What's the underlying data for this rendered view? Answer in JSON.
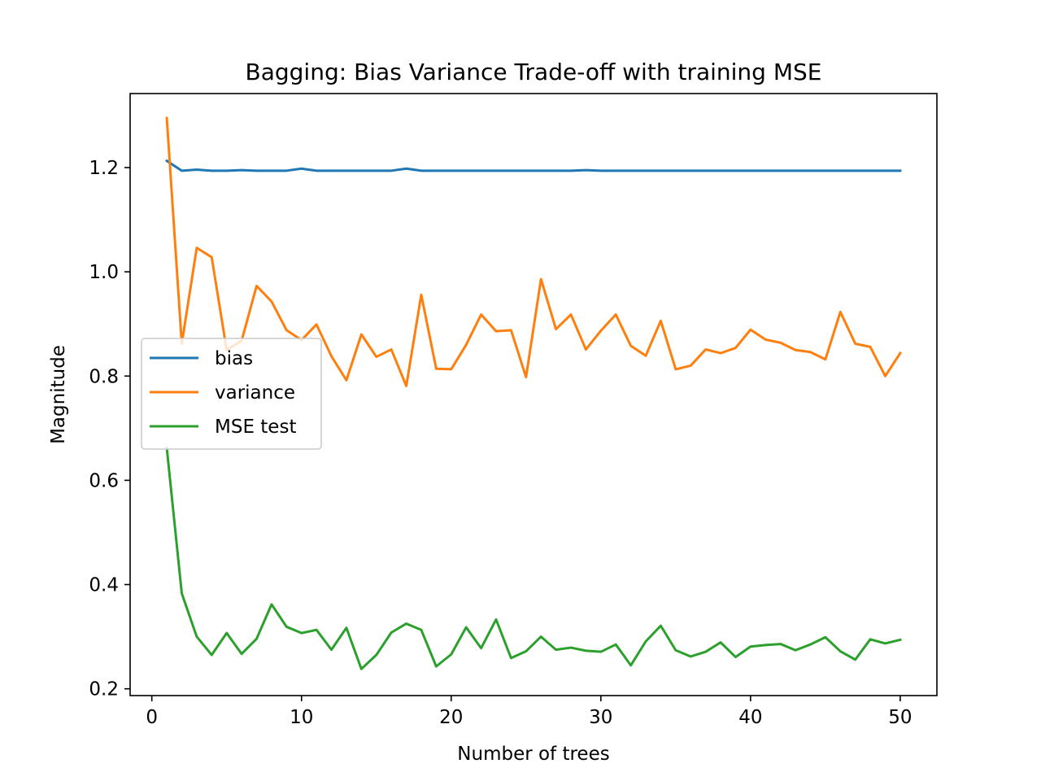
{
  "chart_data": {
    "type": "line",
    "title": "Bagging: Bias Variance Trade-off with training MSE",
    "xlabel": "Number of trees",
    "ylabel": "Magnitude",
    "xlim": [
      -1.45,
      52.45
    ],
    "ylim": [
      0.187,
      1.342
    ],
    "xticks": [
      0,
      10,
      20,
      30,
      40,
      50
    ],
    "xtick_labels": [
      "0",
      "10",
      "20",
      "30",
      "40",
      "50"
    ],
    "yticks": [
      0.2,
      0.4,
      0.6,
      0.8,
      1.0,
      1.2
    ],
    "ytick_labels": [
      "0.2",
      "0.4",
      "0.6",
      "0.8",
      "1.0",
      "1.2"
    ],
    "grid": false,
    "legend_position": "center-left",
    "x": [
      1,
      2,
      3,
      4,
      5,
      6,
      7,
      8,
      9,
      10,
      11,
      12,
      13,
      14,
      15,
      16,
      17,
      18,
      19,
      20,
      21,
      22,
      23,
      24,
      25,
      26,
      27,
      28,
      29,
      30,
      31,
      32,
      33,
      34,
      35,
      36,
      37,
      38,
      39,
      40,
      41,
      42,
      43,
      44,
      45,
      46,
      47,
      48,
      49,
      50
    ],
    "series": [
      {
        "name": "bias",
        "color": "#1f77b4",
        "values": [
          1.213,
          1.194,
          1.196,
          1.194,
          1.194,
          1.195,
          1.194,
          1.194,
          1.194,
          1.198,
          1.194,
          1.194,
          1.194,
          1.194,
          1.194,
          1.194,
          1.198,
          1.194,
          1.194,
          1.194,
          1.194,
          1.194,
          1.194,
          1.194,
          1.194,
          1.194,
          1.194,
          1.194,
          1.195,
          1.194,
          1.194,
          1.194,
          1.194,
          1.194,
          1.194,
          1.194,
          1.194,
          1.194,
          1.194,
          1.194,
          1.194,
          1.194,
          1.194,
          1.194,
          1.194,
          1.194,
          1.194,
          1.194,
          1.194,
          1.194
        ]
      },
      {
        "name": "variance",
        "color": "#ff7f0e",
        "values": [
          1.295,
          0.862,
          1.046,
          1.028,
          0.85,
          0.868,
          0.973,
          0.943,
          0.888,
          0.869,
          0.899,
          0.838,
          0.792,
          0.88,
          0.837,
          0.851,
          0.781,
          0.956,
          0.814,
          0.813,
          0.86,
          0.918,
          0.886,
          0.888,
          0.798,
          0.986,
          0.89,
          0.918,
          0.851,
          0.887,
          0.918,
          0.858,
          0.839,
          0.906,
          0.813,
          0.82,
          0.851,
          0.844,
          0.854,
          0.889,
          0.87,
          0.864,
          0.85,
          0.846,
          0.832,
          0.923,
          0.862,
          0.856,
          0.8,
          0.844
        ]
      },
      {
        "name": "MSE test",
        "color": "#2ca02c",
        "values": [
          0.662,
          0.383,
          0.3,
          0.265,
          0.307,
          0.267,
          0.296,
          0.362,
          0.319,
          0.307,
          0.313,
          0.275,
          0.317,
          0.238,
          0.265,
          0.308,
          0.325,
          0.313,
          0.243,
          0.266,
          0.318,
          0.278,
          0.333,
          0.259,
          0.272,
          0.3,
          0.275,
          0.279,
          0.273,
          0.271,
          0.285,
          0.245,
          0.291,
          0.321,
          0.274,
          0.262,
          0.271,
          0.289,
          0.261,
          0.281,
          0.284,
          0.286,
          0.274,
          0.285,
          0.299,
          0.272,
          0.256,
          0.295,
          0.287,
          0.294
        ]
      }
    ]
  }
}
